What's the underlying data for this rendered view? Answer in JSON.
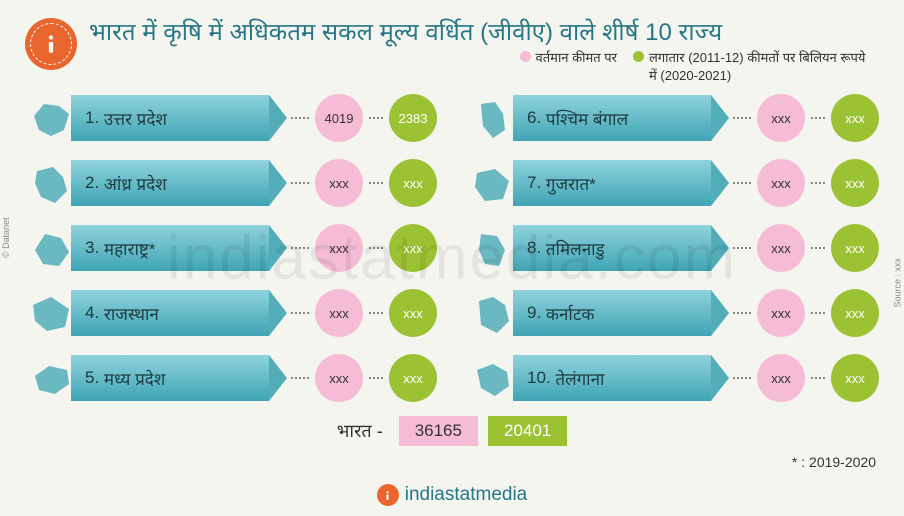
{
  "title": "भारत में कृषि में अधिकतम सकल मूल्य वर्धित (जीवीए) वाले शीर्ष 10 राज्य",
  "legend": {
    "current_label": "वर्तमान कीमत पर",
    "constant_label": "लगातार (2011-12) कीमतों पर बिलियन रूपये में (2020-2021)",
    "current_color": "#f6bcd6",
    "constant_color": "#9bc232"
  },
  "states": [
    {
      "rank": "1.",
      "name": "उत्तर प्रदेश",
      "current": "4019",
      "constant": "2383"
    },
    {
      "rank": "2.",
      "name": "आंध्र प्रदेश",
      "current": "xxx",
      "constant": "xxx"
    },
    {
      "rank": "3.",
      "name": "महाराष्ट्र*",
      "current": "xxx",
      "constant": "xxx"
    },
    {
      "rank": "4.",
      "name": "राजस्थान",
      "current": "xxx",
      "constant": "xxx"
    },
    {
      "rank": "5.",
      "name": "मध्य प्रदेश",
      "current": "xxx",
      "constant": "xxx"
    },
    {
      "rank": "6.",
      "name": "पश्चिम बंगाल",
      "current": "xxx",
      "constant": "xxx"
    },
    {
      "rank": "7.",
      "name": "गुजरात*",
      "current": "xxx",
      "constant": "xxx"
    },
    {
      "rank": "8.",
      "name": "तमिलनाडु",
      "current": "xxx",
      "constant": "xxx"
    },
    {
      "rank": "9.",
      "name": "कर्नाटक",
      "current": "xxx",
      "constant": "xxx"
    },
    {
      "rank": "10.",
      "name": "तेलंगाना",
      "current": "xxx",
      "constant": "xxx"
    }
  ],
  "totals": {
    "label": "भारत -",
    "current": "36165",
    "constant": "20401"
  },
  "footnote": "* : 2019-2020",
  "footer_brand": "indiastatmedia",
  "watermark": "indiastatmedia.com",
  "credit_source": "Source : xxx",
  "credit_datanet": "© Datanet",
  "map_color": "#69b8c2",
  "banner_gradient_top": "#8fd3dc",
  "banner_gradient_bottom": "#3fa5b4"
}
